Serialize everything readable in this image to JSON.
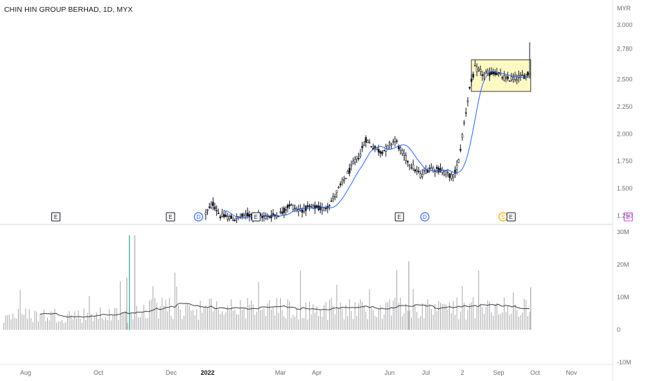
{
  "header": {
    "title": "CHIN HIN GROUP BERHAD, 1D, MYX",
    "currency": "MYR"
  },
  "chart_data": {
    "type": "candlestick",
    "price_axis": {
      "ticks": [
        "3.000",
        "2.780",
        "2.500",
        "2.250",
        "2.000",
        "1.750",
        "1.500",
        "1.250"
      ],
      "tick_values": [
        3.0,
        2.78,
        2.5,
        2.25,
        2.0,
        1.75,
        1.5,
        1.25
      ],
      "range": [
        1.2,
        3.05
      ]
    },
    "volume_axis": {
      "ticks": [
        "30M",
        "20M",
        "10M",
        "0",
        "-10M"
      ],
      "tick_values": [
        30,
        20,
        10,
        0,
        -10
      ],
      "unit": "M",
      "range": [
        -10,
        30
      ]
    },
    "time_axis": {
      "labels": [
        "Aug",
        "Oct",
        "Dec",
        "2022",
        "Mar",
        "Apr",
        "Jun",
        "Jul",
        "2",
        "Sep",
        "Oct",
        "Nov"
      ],
      "bold": [
        "2022"
      ],
      "x_month_index": [
        0,
        2,
        4,
        5,
        7,
        8,
        10,
        11,
        12,
        13,
        14,
        15
      ]
    },
    "price_path_keypoints": [
      {
        "m": 4.95,
        "p": 1.27
      },
      {
        "m": 5.15,
        "p": 1.36
      },
      {
        "m": 5.35,
        "p": 1.25
      },
      {
        "m": 5.75,
        "p": 1.22
      },
      {
        "m": 6.1,
        "p": 1.26
      },
      {
        "m": 6.6,
        "p": 1.24
      },
      {
        "m": 7.0,
        "p": 1.27
      },
      {
        "m": 7.25,
        "p": 1.35
      },
      {
        "m": 7.5,
        "p": 1.3
      },
      {
        "m": 7.9,
        "p": 1.33
      },
      {
        "m": 8.2,
        "p": 1.31
      },
      {
        "m": 8.4,
        "p": 1.38
      },
      {
        "m": 8.7,
        "p": 1.55
      },
      {
        "m": 9.0,
        "p": 1.72
      },
      {
        "m": 9.2,
        "p": 1.82
      },
      {
        "m": 9.35,
        "p": 1.95
      },
      {
        "m": 9.55,
        "p": 1.88
      },
      {
        "m": 9.75,
        "p": 1.84
      },
      {
        "m": 9.9,
        "p": 1.86
      },
      {
        "m": 10.15,
        "p": 1.95
      },
      {
        "m": 10.35,
        "p": 1.82
      },
      {
        "m": 10.55,
        "p": 1.73
      },
      {
        "m": 10.85,
        "p": 1.62
      },
      {
        "m": 11.1,
        "p": 1.69
      },
      {
        "m": 11.4,
        "p": 1.67
      },
      {
        "m": 11.75,
        "p": 1.6
      },
      {
        "m": 11.9,
        "p": 1.75
      },
      {
        "m": 12.05,
        "p": 2.1
      },
      {
        "m": 12.2,
        "p": 2.42
      },
      {
        "m": 12.35,
        "p": 2.6
      },
      {
        "m": 12.6,
        "p": 2.54
      },
      {
        "m": 12.9,
        "p": 2.57
      },
      {
        "m": 13.2,
        "p": 2.5
      },
      {
        "m": 13.6,
        "p": 2.52
      },
      {
        "m": 13.85,
        "p": 2.56
      }
    ],
    "last_bar_high": 2.84,
    "consolidation_box": {
      "m_start": 12.25,
      "m_end": 13.88,
      "p_low": 2.39,
      "p_high": 2.68
    },
    "volume_spikes": [
      {
        "m": 2.78,
        "v": 16
      },
      {
        "m": 2.85,
        "v": 29
      },
      {
        "m": 3.0,
        "v": 29
      },
      {
        "m": 13.88,
        "v": 13
      },
      {
        "m": 10.53,
        "v": 21
      }
    ],
    "events": [
      {
        "label": "E",
        "m": 0.83,
        "kind": "box"
      },
      {
        "label": "E",
        "m": 3.98,
        "kind": "box"
      },
      {
        "label": "D",
        "m": 4.75,
        "kind": "circle",
        "color": "#2962ff"
      },
      {
        "label": "E",
        "m": 6.33,
        "kind": "box"
      },
      {
        "label": "E",
        "m": 10.27,
        "kind": "box"
      },
      {
        "label": "D",
        "m": 10.97,
        "kind": "circle",
        "color": "#2962ff"
      },
      {
        "label": "S",
        "m": 13.12,
        "kind": "circle",
        "color": "#f7a600"
      },
      {
        "label": "E",
        "m": 13.34,
        "kind": "box"
      },
      {
        "label": "E",
        "m": 16.56,
        "kind": "box",
        "color": "#e040fb"
      }
    ],
    "colors": {
      "candle": "#131722",
      "ma": "#2962ff",
      "volume": "#a7a7ab",
      "volume_ma": "#3b3b3f",
      "spike": "#26a69a",
      "box_fill": "#fff9c4",
      "box_stroke": "#3a3a3a",
      "grid": "#e0e3eb"
    }
  }
}
